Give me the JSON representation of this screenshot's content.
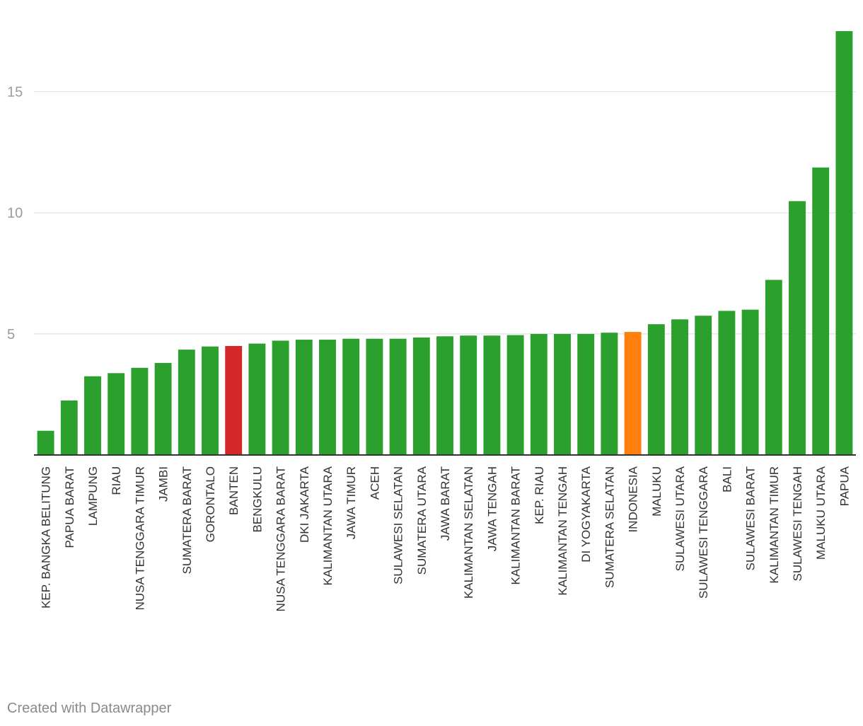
{
  "chart_data": {
    "type": "bar",
    "title": "",
    "xlabel": "",
    "ylabel": "",
    "ylim": [
      0,
      17.5
    ],
    "y_ticks": [
      5,
      10,
      15
    ],
    "grid": true,
    "legend": "none",
    "colors": {
      "default": "#2ca02c",
      "highlight_red": "#d62728",
      "highlight_orange": "#ff7f0e",
      "axis": "#333333",
      "grid": "#e2e2e2",
      "tick_text": "#9b9b9b"
    },
    "categories": [
      "KEP. BANGKA BELITUNG",
      "PAPUA BARAT",
      "LAMPUNG",
      "RIAU",
      "NUSA TENGGARA TIMUR",
      "JAMBI",
      "SUMATERA BARAT",
      "GORONTALO",
      "BANTEN",
      "BENGKULU",
      "NUSA TENGGARA BARAT",
      "DKI JAKARTA",
      "KALIMANTAN UTARA",
      "JAWA TIMUR",
      "ACEH",
      "SULAWESI SELATAN",
      "SUMATERA UTARA",
      "JAWA BARAT",
      "KALIMANTAN SELATAN",
      "JAWA TENGAH",
      "KALIMANTAN BARAT",
      "KEP. RIAU",
      "KALIMANTAN TENGAH",
      "DI YOGYAKARTA",
      "SUMATERA SELATAN",
      "INDONESIA",
      "MALUKU",
      "SULAWESI UTARA",
      "SULAWESI TENGGARA",
      "BALI",
      "SULAWESI BARAT",
      "KALIMANTAN TIMUR",
      "SULAWESI TENGAH",
      "MALUKU UTARA",
      "PAPUA"
    ],
    "values": [
      1.0,
      2.25,
      3.25,
      3.38,
      3.6,
      3.8,
      4.35,
      4.48,
      4.5,
      4.6,
      4.72,
      4.76,
      4.76,
      4.8,
      4.8,
      4.8,
      4.85,
      4.9,
      4.93,
      4.93,
      4.95,
      5.0,
      5.0,
      5.0,
      5.05,
      5.08,
      5.4,
      5.6,
      5.75,
      5.95,
      6.0,
      7.23,
      10.48,
      11.87,
      17.5
    ],
    "highlights": {
      "BANTEN": "#d62728",
      "INDONESIA": "#ff7f0e"
    }
  },
  "footer": {
    "credit": "Created with Datawrapper"
  }
}
